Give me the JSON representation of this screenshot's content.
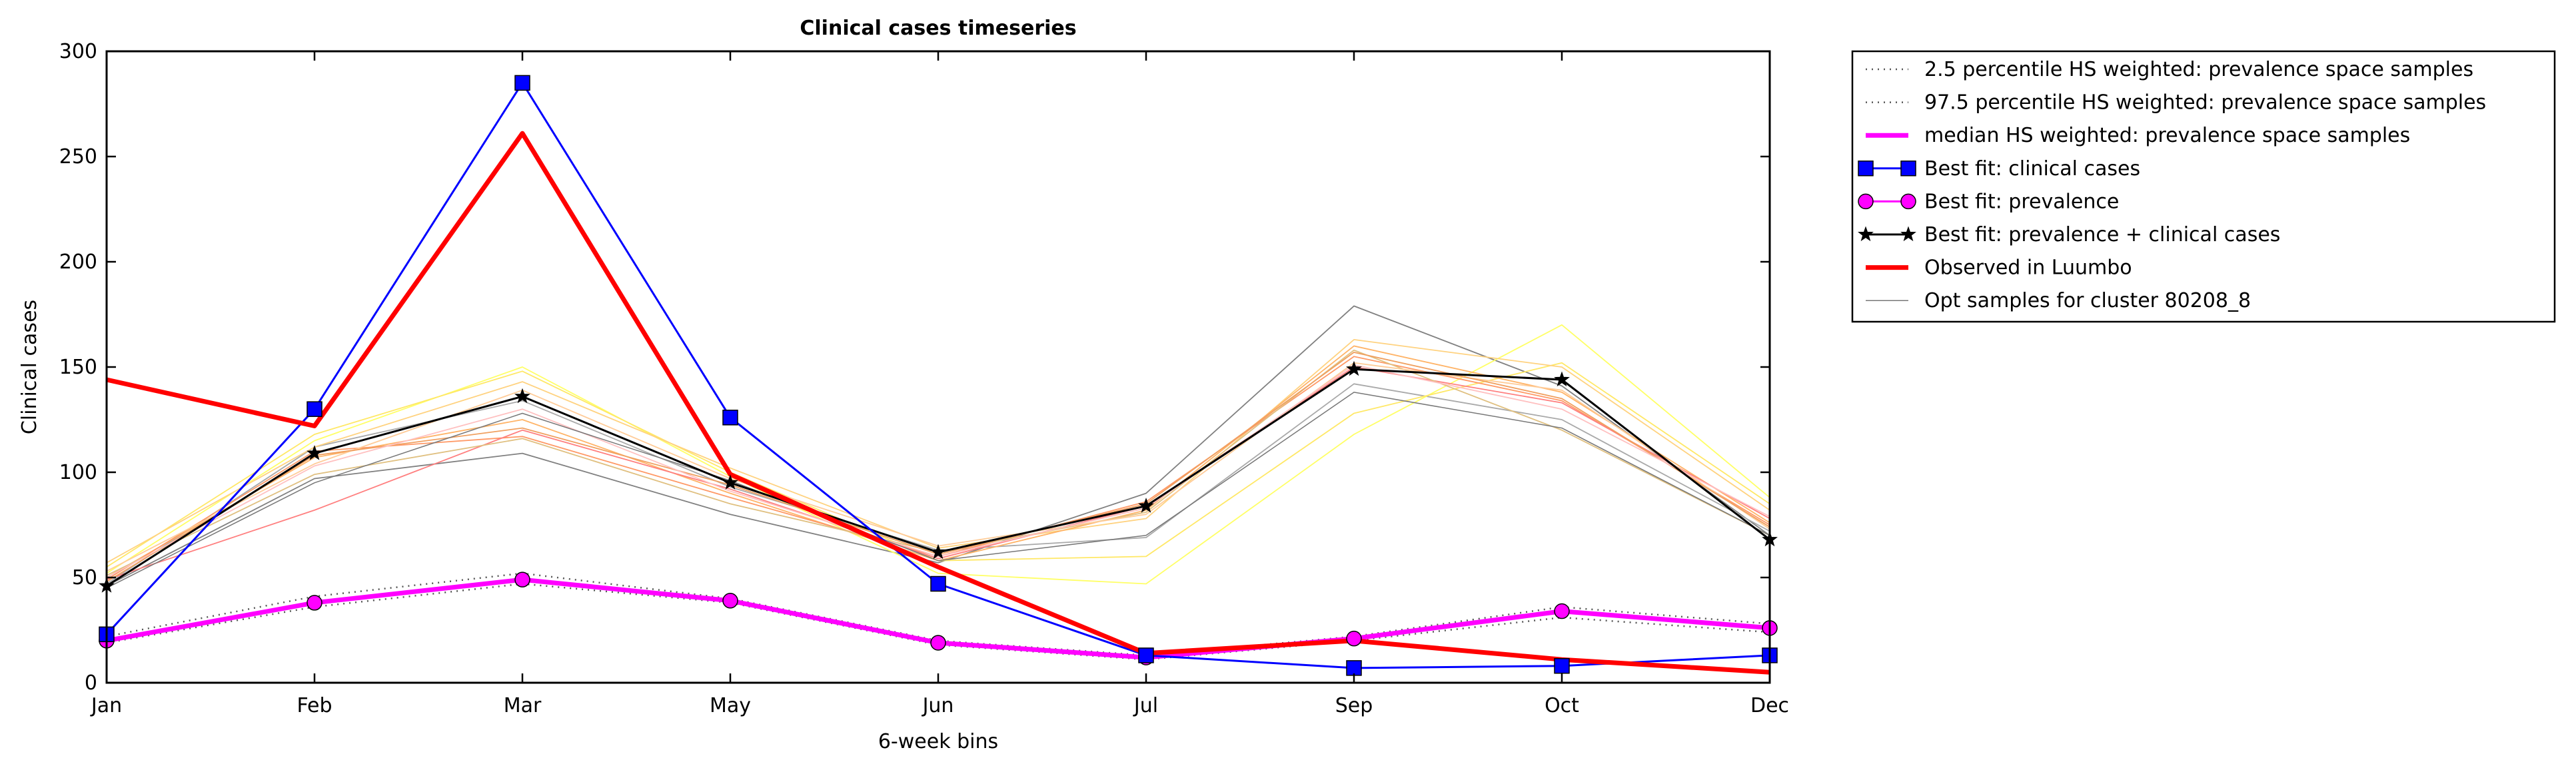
{
  "chart_data": {
    "type": "line",
    "title": "Clinical cases timeseries",
    "xlabel": "6-week bins",
    "ylabel": "Clinical cases",
    "categories": [
      "Jan",
      "Feb",
      "Mar",
      "May",
      "Jun",
      "Jul",
      "Sep",
      "Oct",
      "Dec"
    ],
    "ylim": [
      0,
      300
    ],
    "yticks": [
      0,
      50,
      100,
      150,
      200,
      250,
      300
    ],
    "grid": false,
    "legend_position": "outside-top-right",
    "series": [
      {
        "name": "2.5 percentile HS weighted: prevalence space samples",
        "color": "#555555",
        "style": "dotted",
        "values": [
          19,
          36,
          47,
          38,
          18,
          11,
          20,
          31,
          24
        ]
      },
      {
        "name": "97.5 percentile HS weighted: prevalence space samples",
        "color": "#555555",
        "style": "dotted",
        "values": [
          22,
          41,
          52,
          40,
          20,
          13,
          22,
          36,
          28
        ]
      },
      {
        "name": "median HS weighted: prevalence space samples",
        "color": "#ff00ff",
        "style": "solid-thick",
        "values": [
          20,
          38,
          49,
          39,
          19,
          12,
          21,
          34,
          26
        ]
      },
      {
        "name": "Best fit: clinical cases",
        "color": "#0000ff",
        "style": "solid",
        "marker": "square",
        "values": [
          23,
          130,
          285,
          126,
          47,
          13,
          7,
          8,
          13
        ]
      },
      {
        "name": "Best fit: prevalence",
        "color": "#ff00ff",
        "style": "solid",
        "marker": "circle",
        "values": [
          20,
          38,
          49,
          39,
          19,
          12,
          21,
          34,
          26
        ]
      },
      {
        "name": "Best fit: prevalence + clinical cases",
        "color": "#000000",
        "style": "solid",
        "marker": "star",
        "values": [
          46,
          109,
          136,
          95,
          62,
          84,
          149,
          144,
          68
        ]
      },
      {
        "name": "Observed in Luumbo",
        "color": "#ff0000",
        "style": "solid-thick",
        "values": [
          144,
          122,
          261,
          99,
          55,
          14,
          20,
          11,
          5
        ]
      },
      {
        "name": "Opt samples for cluster 80208_8",
        "color": "#777777",
        "style": "thin",
        "values": [
          45,
          95,
          128,
          96,
          58,
          70,
          138,
          121,
          70
        ]
      }
    ],
    "sample_lines": [
      {
        "color": "#808080",
        "values": [
          46,
          97,
          109,
          80,
          57,
          90,
          179,
          141,
          70
        ]
      },
      {
        "color": "#a9a9a9",
        "values": [
          47,
          112,
          134,
          93,
          63,
          69,
          142,
          125,
          72
        ]
      },
      {
        "color": "#ffff66",
        "values": [
          52,
          115,
          150,
          98,
          52,
          47,
          118,
          170,
          88
        ]
      },
      {
        "color": "#ffe866",
        "values": [
          55,
          118,
          148,
          100,
          58,
          60,
          128,
          152,
          85
        ]
      },
      {
        "color": "#ffd27f",
        "values": [
          57,
          112,
          143,
          102,
          64,
          78,
          163,
          150,
          82
        ]
      },
      {
        "color": "#ffb366",
        "values": [
          50,
          107,
          125,
          90,
          58,
          82,
          160,
          138,
          76
        ]
      },
      {
        "color": "#ff9966",
        "values": [
          49,
          110,
          117,
          88,
          60,
          86,
          155,
          134,
          75
        ]
      },
      {
        "color": "#ff7f7f",
        "values": [
          49,
          82,
          120,
          92,
          59,
          84,
          150,
          133,
          78
        ]
      },
      {
        "color": "#e0c080",
        "values": [
          51,
          99,
          116,
          85,
          62,
          81,
          158,
          120,
          70
        ]
      },
      {
        "color": "#ffcc99",
        "values": [
          53,
          104,
          139,
          97,
          65,
          80,
          152,
          139,
          73
        ]
      },
      {
        "color": "#f0a060",
        "values": [
          48,
          108,
          121,
          94,
          61,
          85,
          157,
          135,
          74
        ]
      },
      {
        "color": "#ffc0c0",
        "values": [
          50,
          103,
          130,
          91,
          60,
          83,
          151,
          130,
          79
        ]
      }
    ]
  }
}
